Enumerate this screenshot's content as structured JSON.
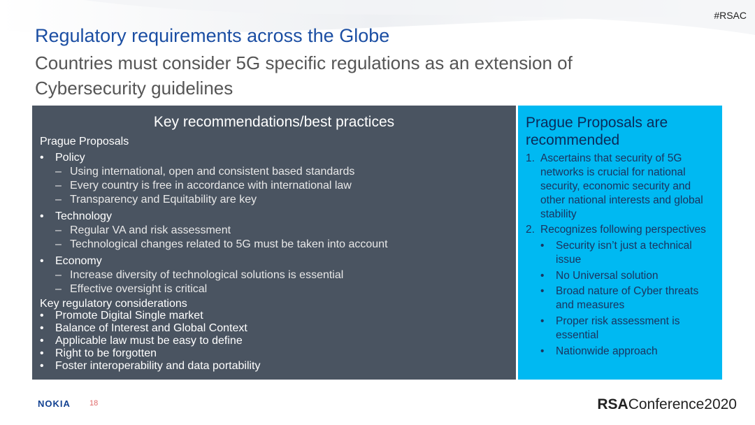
{
  "header": {
    "hashtag": "#RSAC",
    "title": "Regulatory requirements across the Globe",
    "subtitle": "Countries must consider  5G specific regulations as an extension of Cybersecurity guidelines"
  },
  "left_panel": {
    "heading": "Key recommendations/best practices",
    "section1_title": "Prague Proposals",
    "groups": [
      {
        "label": "Policy",
        "items": [
          "Using international, open and consistent based standards",
          "Every country is free in accordance with international law",
          "Transparency and Equitability are key"
        ]
      },
      {
        "label": "Technology",
        "items": [
          "Regular VA and risk assessment",
          "Technological changes related to 5G must be taken into account"
        ]
      },
      {
        "label": "Economy",
        "items": [
          "Increase diversity of technological solutions is essential",
          "Effective oversight is critical"
        ]
      }
    ],
    "section2_title": "Key regulatory considerations",
    "considerations": [
      "Promote Digital Single market",
      "Balance of Interest and Global Context",
      "Applicable law must be easy to define",
      "Right to be forgotten",
      "Foster interoperability and data portability"
    ]
  },
  "right_panel": {
    "title": "Prague Proposals are recommended",
    "item1_num": "1.",
    "item1": "Ascertains that security of 5G networks is crucial for national security, economic security and other national interests and global stability",
    "item2_num": "2.",
    "item2": "Recognizes following perspectives",
    "perspectives": [
      "Security isn’t just a technical issue",
      "No Universal solution",
      "Broad nature of Cyber threats and measures",
      "Proper risk assessment is essential",
      "Nationwide approach"
    ]
  },
  "footer": {
    "logo": "NOKIA",
    "page_number": "18",
    "conference_rsa": "RSA",
    "conference_rest": "Conference2020"
  },
  "colors": {
    "title": "#1b4ea3",
    "left_panel_bg": "#4a5461",
    "right_panel_bg": "#00b9f2"
  }
}
